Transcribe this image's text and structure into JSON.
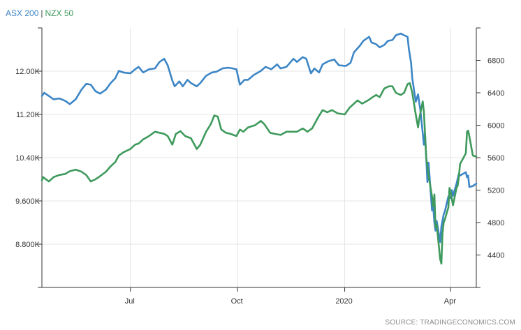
{
  "legend": {
    "asx_label": "ASX 200",
    "separator": "|",
    "nzx_label": "NZX 50"
  },
  "colors": {
    "asx": "#3d86c6",
    "nzx": "#3e9a5c",
    "grid": "#e4e4e4",
    "axis": "#333333"
  },
  "source": "SOURCE: TRADINGECONOMICS.COM",
  "chart_data": {
    "type": "line",
    "x_tick_labels": [
      "Jul",
      "Oct",
      "2020",
      "Apr"
    ],
    "x_ticks_at": [
      "2019-07-01",
      "2019-10-01",
      "2020-01-01",
      "2020-04-01"
    ],
    "x_range": [
      "2019-04-16",
      "2020-04-23"
    ],
    "left_axis": {
      "series": "NZX 50",
      "ticks": [
        8800,
        9600,
        10400,
        11200,
        12000
      ],
      "tick_labels": [
        "8.800K",
        "9.600K",
        "10.40K",
        "11.20K",
        "12.00K"
      ],
      "range": [
        8000,
        12800
      ]
    },
    "right_axis": {
      "series": "ASX 200",
      "ticks": [
        4400,
        4800,
        5200,
        5600,
        6000,
        6400,
        6800
      ],
      "tick_labels": [
        "4400",
        "4800",
        "5200",
        "5600",
        "6000",
        "6400",
        "6800"
      ],
      "range": [
        4000,
        7200
      ]
    },
    "grid": true,
    "series": [
      {
        "name": "ASX 200",
        "axis": "right",
        "points": [
          [
            "2019-04-16",
            6360
          ],
          [
            "2019-04-18",
            6400
          ],
          [
            "2019-04-22",
            6360
          ],
          [
            "2019-04-26",
            6320
          ],
          [
            "2019-05-01",
            6330
          ],
          [
            "2019-05-06",
            6300
          ],
          [
            "2019-05-10",
            6260
          ],
          [
            "2019-05-15",
            6320
          ],
          [
            "2019-05-20",
            6440
          ],
          [
            "2019-05-24",
            6510
          ],
          [
            "2019-05-28",
            6500
          ],
          [
            "2019-06-01",
            6420
          ],
          [
            "2019-06-05",
            6390
          ],
          [
            "2019-06-10",
            6440
          ],
          [
            "2019-06-14",
            6520
          ],
          [
            "2019-06-18",
            6580
          ],
          [
            "2019-06-21",
            6670
          ],
          [
            "2019-06-25",
            6650
          ],
          [
            "2019-07-01",
            6640
          ],
          [
            "2019-07-05",
            6690
          ],
          [
            "2019-07-08",
            6720
          ],
          [
            "2019-07-12",
            6650
          ],
          [
            "2019-07-17",
            6690
          ],
          [
            "2019-07-22",
            6700
          ],
          [
            "2019-07-26",
            6780
          ],
          [
            "2019-07-30",
            6820
          ],
          [
            "2019-08-02",
            6740
          ],
          [
            "2019-08-06",
            6550
          ],
          [
            "2019-08-08",
            6480
          ],
          [
            "2019-08-12",
            6540
          ],
          [
            "2019-08-15",
            6480
          ],
          [
            "2019-08-19",
            6560
          ],
          [
            "2019-08-22",
            6520
          ],
          [
            "2019-08-27",
            6480
          ],
          [
            "2019-08-30",
            6520
          ],
          [
            "2019-09-04",
            6610
          ],
          [
            "2019-09-09",
            6650
          ],
          [
            "2019-09-13",
            6660
          ],
          [
            "2019-09-18",
            6700
          ],
          [
            "2019-09-23",
            6710
          ],
          [
            "2019-09-27",
            6700
          ],
          [
            "2019-09-30",
            6690
          ],
          [
            "2019-10-03",
            6500
          ],
          [
            "2019-10-07",
            6560
          ],
          [
            "2019-10-10",
            6560
          ],
          [
            "2019-10-15",
            6620
          ],
          [
            "2019-10-21",
            6670
          ],
          [
            "2019-10-25",
            6720
          ],
          [
            "2019-10-30",
            6690
          ],
          [
            "2019-11-04",
            6750
          ],
          [
            "2019-11-07",
            6700
          ],
          [
            "2019-11-12",
            6720
          ],
          [
            "2019-11-18",
            6820
          ],
          [
            "2019-11-21",
            6780
          ],
          [
            "2019-11-26",
            6840
          ],
          [
            "2019-11-29",
            6820
          ],
          [
            "2019-12-03",
            6640
          ],
          [
            "2019-12-06",
            6700
          ],
          [
            "2019-12-10",
            6650
          ],
          [
            "2019-12-13",
            6750
          ],
          [
            "2019-12-18",
            6790
          ],
          [
            "2019-12-23",
            6810
          ],
          [
            "2019-12-27",
            6740
          ],
          [
            "2020-01-02",
            6730
          ],
          [
            "2020-01-06",
            6770
          ],
          [
            "2020-01-09",
            6900
          ],
          [
            "2020-01-14",
            6980
          ],
          [
            "2020-01-17",
            7040
          ],
          [
            "2020-01-22",
            7090
          ],
          [
            "2020-01-24",
            7020
          ],
          [
            "2020-01-28",
            7000
          ],
          [
            "2020-01-31",
            6960
          ],
          [
            "2020-02-04",
            6990
          ],
          [
            "2020-02-07",
            7040
          ],
          [
            "2020-02-11",
            7050
          ],
          [
            "2020-02-14",
            7110
          ],
          [
            "2020-02-18",
            7130
          ],
          [
            "2020-02-21",
            7110
          ],
          [
            "2020-02-24",
            7090
          ],
          [
            "2020-02-25",
            6950
          ],
          [
            "2020-02-27",
            6770
          ],
          [
            "2020-02-28",
            6580
          ],
          [
            "2020-03-02",
            6290
          ],
          [
            "2020-03-04",
            6380
          ],
          [
            "2020-03-06",
            6180
          ],
          [
            "2020-03-09",
            5760
          ],
          [
            "2020-03-10",
            5900
          ],
          [
            "2020-03-12",
            5300
          ],
          [
            "2020-03-13",
            5540
          ],
          [
            "2020-03-16",
            4950
          ],
          [
            "2020-03-17",
            5000
          ],
          [
            "2020-03-18",
            4800
          ],
          [
            "2020-03-19",
            4700
          ],
          [
            "2020-03-20",
            4820
          ],
          [
            "2020-03-23",
            4560
          ],
          [
            "2020-03-24",
            4750
          ],
          [
            "2020-03-26",
            4900
          ],
          [
            "2020-03-27",
            4940
          ],
          [
            "2020-03-30",
            5120
          ],
          [
            "2020-04-01",
            5100
          ],
          [
            "2020-04-02",
            5200
          ],
          [
            "2020-04-03",
            5130
          ],
          [
            "2020-04-06",
            5280
          ],
          [
            "2020-04-08",
            5400
          ],
          [
            "2020-04-09",
            5380
          ],
          [
            "2020-04-14",
            5420
          ],
          [
            "2020-04-15",
            5360
          ],
          [
            "2020-04-16",
            5380
          ],
          [
            "2020-04-17",
            5240
          ],
          [
            "2020-04-20",
            5250
          ],
          [
            "2020-04-23",
            5280
          ]
        ]
      },
      {
        "name": "NZX 50",
        "axis": "left",
        "points": [
          [
            "2019-04-16",
            9980
          ],
          [
            "2019-04-17",
            10040
          ],
          [
            "2019-04-22",
            9960
          ],
          [
            "2019-04-26",
            10040
          ],
          [
            "2019-05-01",
            10080
          ],
          [
            "2019-05-06",
            10100
          ],
          [
            "2019-05-10",
            10150
          ],
          [
            "2019-05-15",
            10180
          ],
          [
            "2019-05-20",
            10140
          ],
          [
            "2019-05-24",
            10080
          ],
          [
            "2019-05-28",
            9960
          ],
          [
            "2019-06-01",
            10000
          ],
          [
            "2019-06-05",
            10060
          ],
          [
            "2019-06-10",
            10140
          ],
          [
            "2019-06-14",
            10240
          ],
          [
            "2019-06-18",
            10320
          ],
          [
            "2019-06-21",
            10440
          ],
          [
            "2019-06-25",
            10500
          ],
          [
            "2019-07-01",
            10560
          ],
          [
            "2019-07-05",
            10640
          ],
          [
            "2019-07-08",
            10660
          ],
          [
            "2019-07-12",
            10740
          ],
          [
            "2019-07-17",
            10800
          ],
          [
            "2019-07-22",
            10880
          ],
          [
            "2019-07-26",
            10860
          ],
          [
            "2019-07-30",
            10840
          ],
          [
            "2019-08-02",
            10800
          ],
          [
            "2019-08-06",
            10640
          ],
          [
            "2019-08-09",
            10840
          ],
          [
            "2019-08-13",
            10890
          ],
          [
            "2019-08-17",
            10800
          ],
          [
            "2019-08-22",
            10760
          ],
          [
            "2019-08-27",
            10560
          ],
          [
            "2019-08-30",
            10640
          ],
          [
            "2019-09-04",
            10880
          ],
          [
            "2019-09-08",
            11020
          ],
          [
            "2019-09-11",
            11180
          ],
          [
            "2019-09-14",
            11160
          ],
          [
            "2019-09-17",
            10920
          ],
          [
            "2019-09-21",
            10860
          ],
          [
            "2019-09-25",
            10840
          ],
          [
            "2019-09-30",
            10800
          ],
          [
            "2019-10-03",
            10920
          ],
          [
            "2019-10-06",
            10880
          ],
          [
            "2019-10-10",
            10960
          ],
          [
            "2019-10-16",
            11000
          ],
          [
            "2019-10-21",
            11080
          ],
          [
            "2019-10-24",
            11020
          ],
          [
            "2019-10-29",
            10860
          ],
          [
            "2019-11-02",
            10840
          ],
          [
            "2019-11-07",
            10820
          ],
          [
            "2019-11-12",
            10880
          ],
          [
            "2019-11-17",
            10880
          ],
          [
            "2019-11-21",
            10880
          ],
          [
            "2019-11-26",
            10940
          ],
          [
            "2019-11-30",
            10880
          ],
          [
            "2019-12-04",
            10940
          ],
          [
            "2019-12-09",
            11140
          ],
          [
            "2019-12-13",
            11280
          ],
          [
            "2019-12-17",
            11240
          ],
          [
            "2019-12-21",
            11280
          ],
          [
            "2019-12-26",
            11220
          ],
          [
            "2020-01-01",
            11200
          ],
          [
            "2020-01-05",
            11320
          ],
          [
            "2020-01-09",
            11400
          ],
          [
            "2020-01-12",
            11460
          ],
          [
            "2020-01-16",
            11400
          ],
          [
            "2020-01-21",
            11460
          ],
          [
            "2020-01-25",
            11520
          ],
          [
            "2020-01-28",
            11560
          ],
          [
            "2020-01-31",
            11520
          ],
          [
            "2020-02-04",
            11680
          ],
          [
            "2020-02-08",
            11720
          ],
          [
            "2020-02-11",
            11720
          ],
          [
            "2020-02-14",
            11600
          ],
          [
            "2020-02-18",
            11560
          ],
          [
            "2020-02-21",
            11600
          ],
          [
            "2020-02-24",
            11760
          ],
          [
            "2020-02-26",
            11780
          ],
          [
            "2020-02-28",
            11600
          ],
          [
            "2020-03-02",
            11200
          ],
          [
            "2020-03-04",
            10960
          ],
          [
            "2020-03-05",
            11120
          ],
          [
            "2020-03-08",
            11440
          ],
          [
            "2020-03-09",
            11240
          ],
          [
            "2020-03-11",
            10400
          ],
          [
            "2020-03-13",
            10080
          ],
          [
            "2020-03-16",
            9680
          ],
          [
            "2020-03-17",
            9500
          ],
          [
            "2020-03-18",
            9720
          ],
          [
            "2020-03-19",
            9120
          ],
          [
            "2020-03-20",
            9160
          ],
          [
            "2020-03-23",
            8520
          ],
          [
            "2020-03-24",
            8440
          ],
          [
            "2020-03-25",
            9000
          ],
          [
            "2020-03-26",
            9200
          ],
          [
            "2020-03-27",
            9260
          ],
          [
            "2020-03-30",
            9480
          ],
          [
            "2020-03-31",
            9840
          ],
          [
            "2020-04-01",
            9760
          ],
          [
            "2020-04-03",
            9520
          ],
          [
            "2020-04-06",
            9840
          ],
          [
            "2020-04-07",
            9880
          ],
          [
            "2020-04-08",
            10040
          ],
          [
            "2020-04-09",
            10280
          ],
          [
            "2020-04-14",
            10480
          ],
          [
            "2020-04-15",
            10880
          ],
          [
            "2020-04-16",
            10900
          ],
          [
            "2020-04-17",
            10800
          ],
          [
            "2020-04-20",
            10440
          ],
          [
            "2020-04-23",
            10420
          ]
        ]
      }
    ]
  }
}
